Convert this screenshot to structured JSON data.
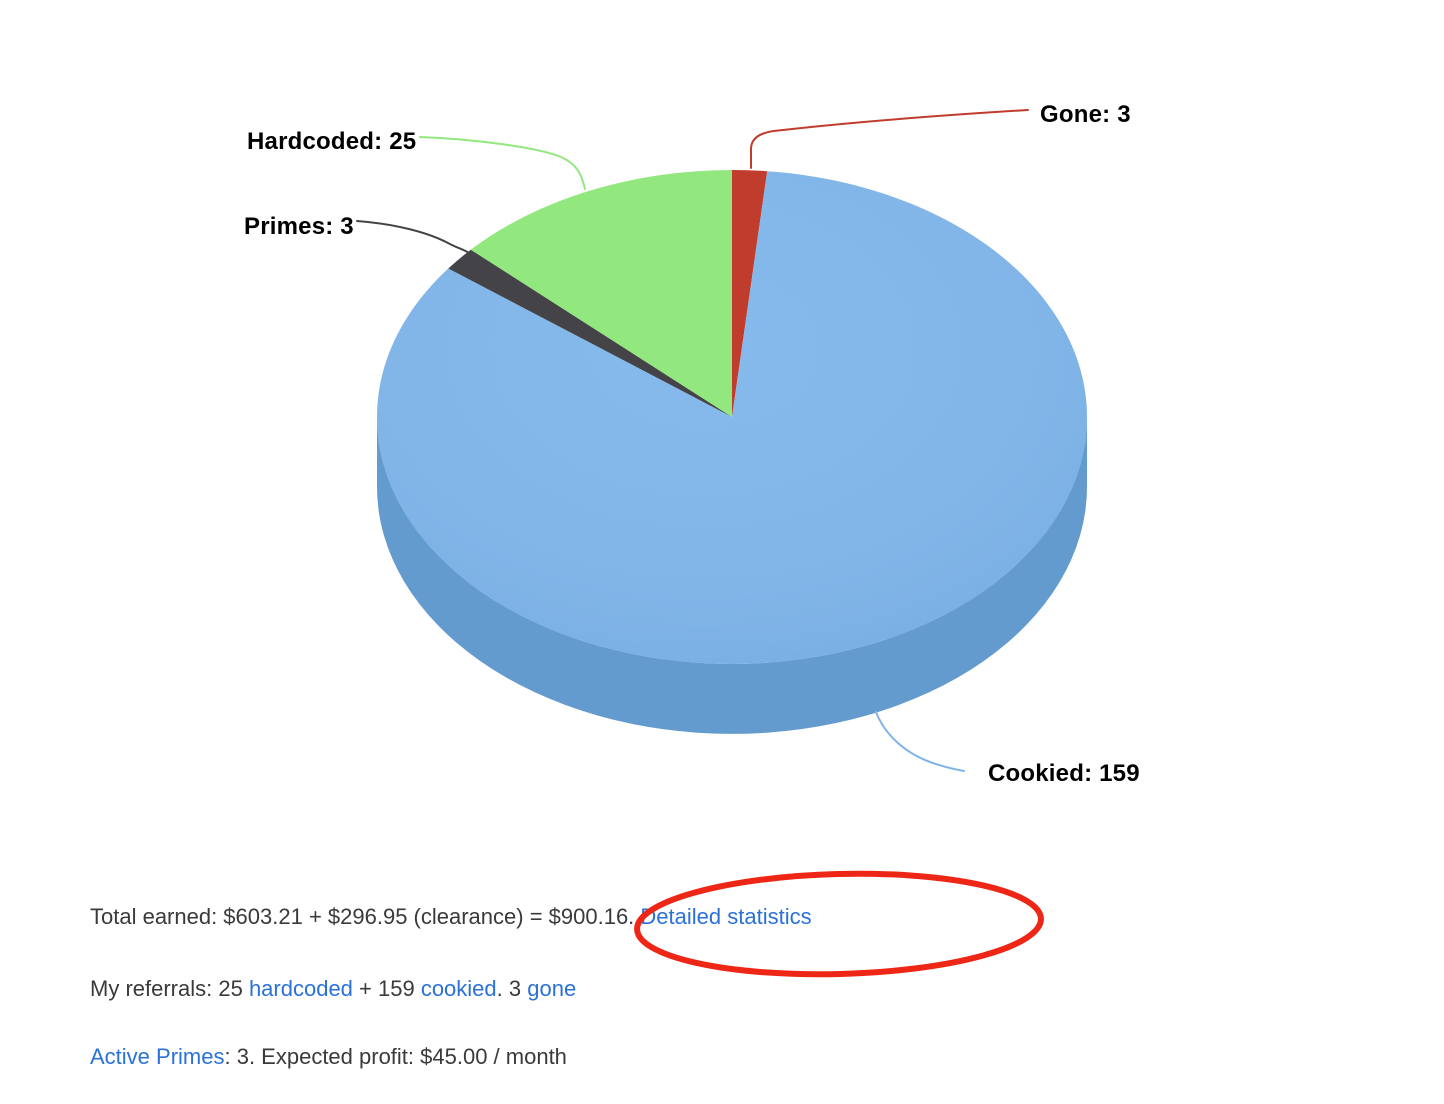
{
  "chart_data": {
    "type": "pie",
    "style": "3d",
    "title": "",
    "start_angle_deg": 0,
    "direction": "clockwise",
    "total": 190,
    "series": [
      {
        "name": "Gone",
        "value": 3,
        "label": "Gone: 3",
        "color": "#c03c2c"
      },
      {
        "name": "Cookied",
        "value": 159,
        "label": "Cookied: 159",
        "color": "#81b5e8",
        "side_color": "#649bce"
      },
      {
        "name": "Primes",
        "value": 3,
        "label": "Primes: 3",
        "color": "#434348"
      },
      {
        "name": "Hardcoded",
        "value": 25,
        "label": "Hardcoded: 25",
        "color": "#92e87e"
      }
    ]
  },
  "annotation": {
    "shape": "ellipse",
    "color": "#ee2615",
    "circled_text": "= $900.16. Detailed statistics"
  },
  "summary": {
    "line1": {
      "text": "Total earned: $603.21 + $296.95 (clearance) = $900.16. ",
      "link": "Detailed statistics"
    },
    "line2": {
      "t1": "My referrals: 25 ",
      "link1": "hardcoded",
      "t2": " + 159 ",
      "link2": "cookied",
      "t3": ". 3 ",
      "link3": "gone"
    },
    "line3": {
      "link": "Active Primes",
      "text": ": 3. Expected profit: $45.00 / month"
    }
  },
  "colors": {
    "link": "#2a71d8",
    "body_text": "#3a3a3a",
    "label_text": "#000000",
    "background": "#ffffff"
  }
}
